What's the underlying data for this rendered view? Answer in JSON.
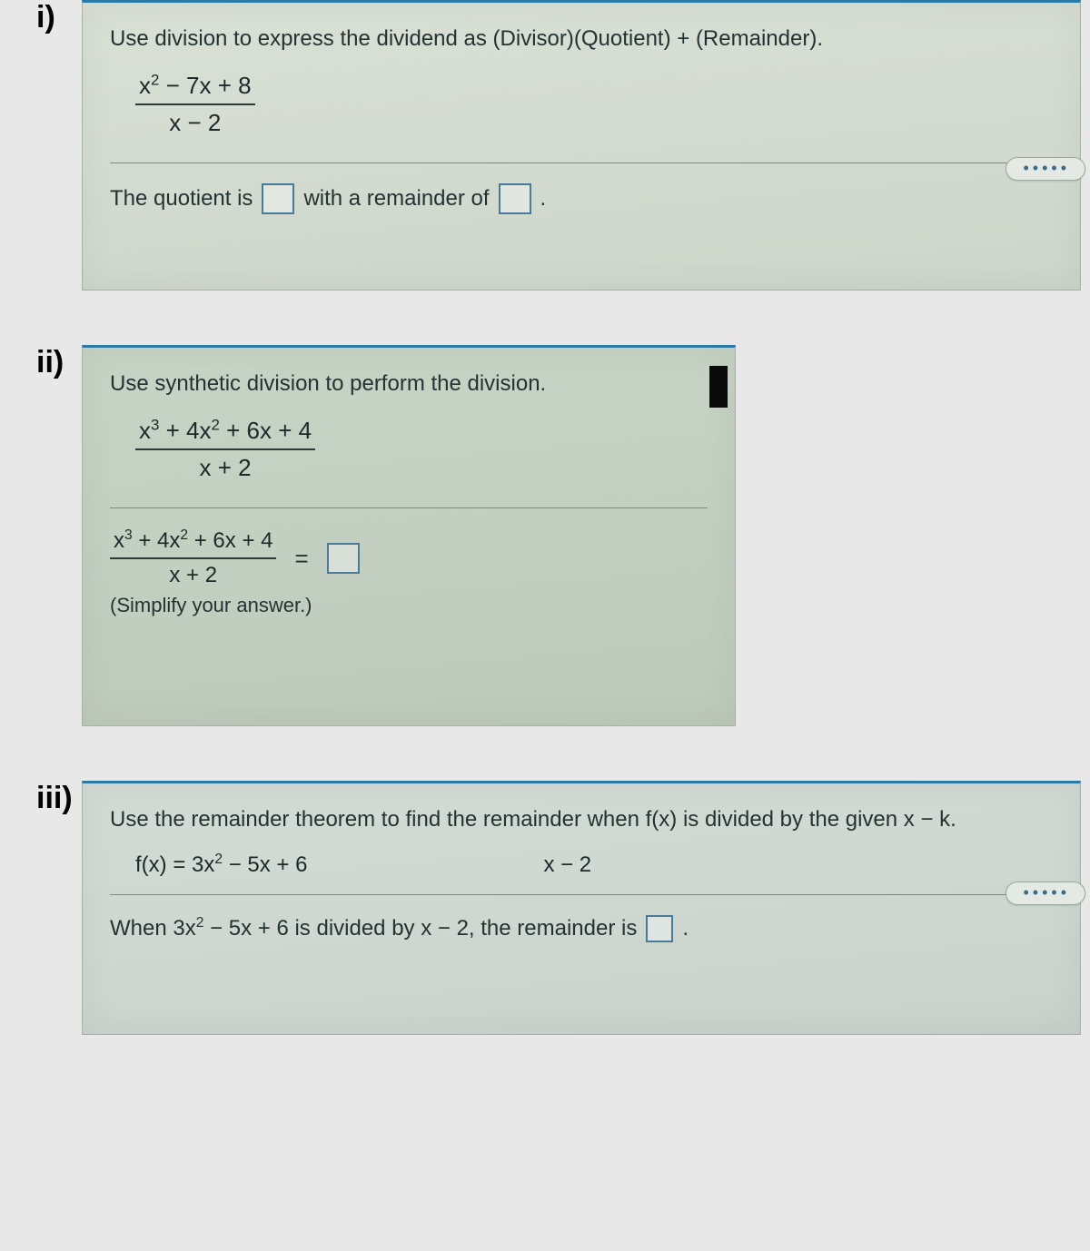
{
  "colors": {
    "accent_border": "#2a7aa8",
    "panel_bg_top": "#d9e0d6",
    "panel_bg_bot": "#cdd6ca",
    "panel2_bg_top": "#c7d3c5",
    "panel2_bg_bot": "#bdc9bb",
    "text": "#223333",
    "blank_border": "#4a7a9a",
    "hint_text": "#3a6a8a",
    "rule": "#7a8a82"
  },
  "problems": [
    {
      "label": "i)",
      "instruction": "Use division to express the dividend as (Divisor)(Quotient) + (Remainder).",
      "fraction": {
        "numerator_html": "x<sup>2</sup> − 7x + 8",
        "denominator_html": "x − 2"
      },
      "answer_prefix": "The quotient is",
      "answer_mid": "with a remainder of",
      "answer_suffix": ".",
      "hint_glyph": "•••••"
    },
    {
      "label": "ii)",
      "instruction": "Use synthetic division to perform the division.",
      "fraction": {
        "numerator_html": "x<sup>3</sup> + 4x<sup>2</sup> + 6x + 4",
        "denominator_html": "x + 2"
      },
      "answer_fraction": {
        "numerator_html": "x<sup>3</sup> + 4x<sup>2</sup> + 6x + 4",
        "denominator_html": "x + 2"
      },
      "simplify_note": "(Simplify your answer.)"
    },
    {
      "label": "iii)",
      "instruction": "Use the remainder theorem to find the remainder when f(x) is divided by the given x − k.",
      "fx_html": "f(x) = 3x<sup>2</sup> − 5x + 6",
      "divisor_html": "x − 2",
      "answer_prefix_html": "When 3x<sup>2</sup> − 5x + 6 is divided by x − 2, the remainder is",
      "answer_suffix": ".",
      "hint_glyph": "•••••"
    }
  ]
}
